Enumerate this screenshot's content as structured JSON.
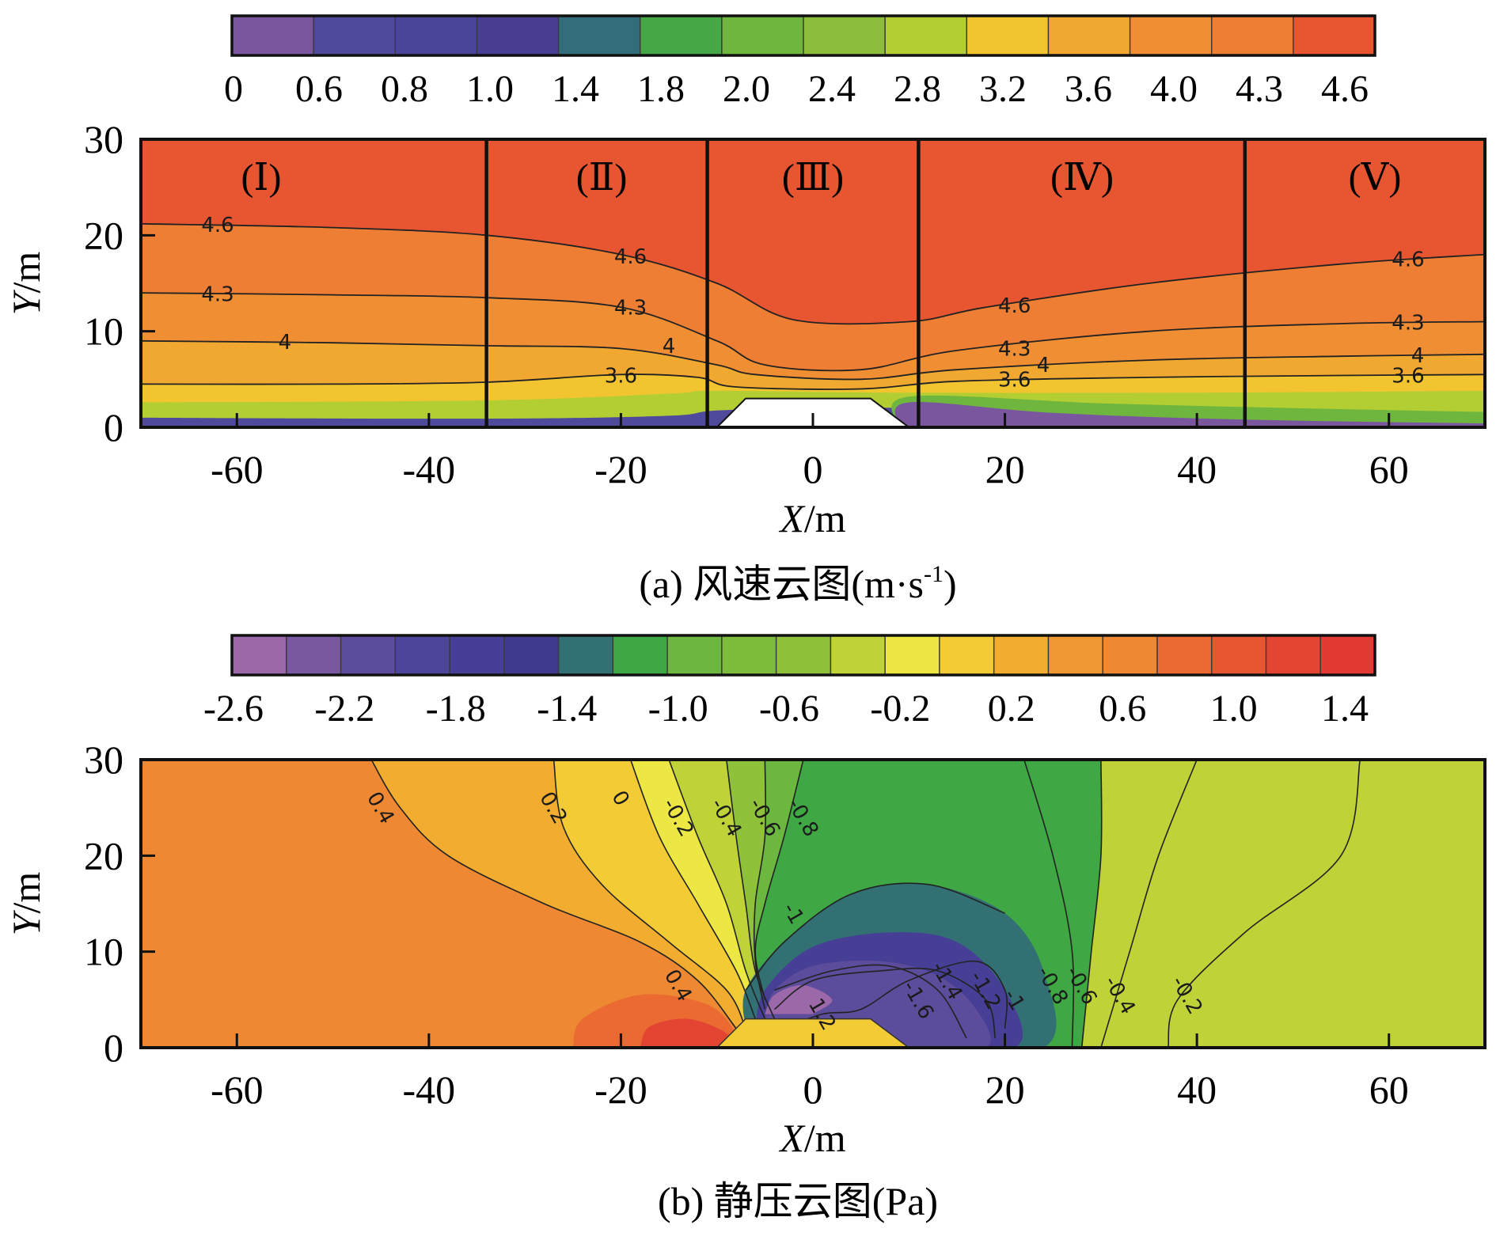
{
  "colors": {
    "velocity_bands": [
      "#7a569f",
      "#4f4a9c",
      "#4b459a",
      "#483f93",
      "#336d7a",
      "#45a745",
      "#6eb63e",
      "#8cbe3b",
      "#b3ce33",
      "#f2c530",
      "#f0a830",
      "#ef8e33",
      "#ee7e33",
      "#e85631"
    ],
    "pressure_bands": [
      "#9b68aa",
      "#7a58a0",
      "#5d4c9b",
      "#4c4599",
      "#463f95",
      "#403a8f",
      "#327074",
      "#3fa744",
      "#6cb73f",
      "#7cbb3c",
      "#8fc13b",
      "#bfd338",
      "#ece742",
      "#f3cb34",
      "#f2ad30",
      "#ef9733",
      "#ee8833",
      "#ea6a32",
      "#e55631",
      "#e44533",
      "#e33a33"
    ]
  },
  "panels": [
    {
      "caption": "(a) 风速云图(m·s",
      "caption_sup": "-1",
      "caption_tail": ")",
      "colorbar_ticks": [
        "0",
        "0.6",
        "0.8",
        "1.0",
        "1.4",
        "1.8",
        "2.0",
        "2.4",
        "2.8",
        "3.2",
        "3.6",
        "4.0",
        "4.3",
        "4.6"
      ],
      "region_labels": [
        "(Ⅰ)",
        "(Ⅱ)",
        "(Ⅲ)",
        "(Ⅳ)",
        "(Ⅴ)"
      ],
      "x_ticks": [
        "-60",
        "-40",
        "-20",
        "0",
        "20",
        "40",
        "60"
      ],
      "y_ticks": [
        "0",
        "10",
        "20",
        "30"
      ],
      "xlabel_var": "X",
      "xlabel_unit": "/m",
      "ylabel_var": "Y",
      "ylabel_unit": "/m"
    },
    {
      "caption": "(b) 静压云图(Pa)",
      "colorbar_ticks": [
        "-2.6",
        "-2.2",
        "-1.8",
        "-1.4",
        "-1.0",
        "-0.6",
        "-0.2",
        "0.2",
        "0.6",
        "1.0",
        "1.4"
      ],
      "x_ticks": [
        "-60",
        "-40",
        "-20",
        "0",
        "20",
        "40",
        "60"
      ],
      "y_ticks": [
        "0",
        "10",
        "20",
        "30"
      ],
      "xlabel_var": "X",
      "xlabel_unit": "/m",
      "ylabel_var": "Y",
      "ylabel_unit": "/m"
    }
  ],
  "chart_data": [
    {
      "type": "heatmap",
      "xlim": [
        -70,
        70
      ],
      "ylim": [
        0,
        30
      ],
      "region_dividers_x": [
        -34,
        -11,
        11,
        45
      ],
      "obstacle": [
        [
          -10,
          0
        ],
        [
          -7,
          3
        ],
        [
          6,
          3
        ],
        [
          10,
          0
        ]
      ],
      "contours": [
        {
          "label": "4.6",
          "points": [
            [
              -70,
              21.2
            ],
            [
              -50,
              20.8
            ],
            [
              -34,
              20
            ],
            [
              -20,
              18
            ],
            [
              -10,
              15
            ],
            [
              -2,
              11.2
            ],
            [
              10,
              11
            ],
            [
              18,
              12.5
            ],
            [
              35,
              15
            ],
            [
              55,
              17
            ],
            [
              70,
              18
            ]
          ]
        },
        {
          "label": "4.3",
          "points": [
            [
              -70,
              14
            ],
            [
              -50,
              13.8
            ],
            [
              -34,
              13.5
            ],
            [
              -20,
              12.5
            ],
            [
              -10,
              9
            ],
            [
              -5,
              6.5
            ],
            [
              5,
              6
            ],
            [
              15,
              8
            ],
            [
              35,
              10
            ],
            [
              55,
              10.8
            ],
            [
              70,
              11
            ]
          ]
        },
        {
          "label": "4",
          "points": [
            [
              -70,
              9
            ],
            [
              -50,
              8.8
            ],
            [
              -34,
              8.5
            ],
            [
              -20,
              8.2
            ],
            [
              -10,
              6.5
            ],
            [
              -6,
              5.5
            ],
            [
              5,
              5
            ],
            [
              15,
              6
            ],
            [
              35,
              7
            ],
            [
              55,
              7.4
            ],
            [
              70,
              7.6
            ]
          ]
        },
        {
          "label": "3.6",
          "points": [
            [
              -70,
              4.5
            ],
            [
              -50,
              4.5
            ],
            [
              -34,
              4.7
            ],
            [
              -20,
              5.5
            ],
            [
              -12,
              5.2
            ],
            [
              -8,
              4.2
            ],
            [
              5,
              4
            ],
            [
              15,
              4.8
            ],
            [
              35,
              5.2
            ],
            [
              55,
              5.4
            ],
            [
              70,
              5.5
            ]
          ]
        }
      ],
      "contour_labels": [
        {
          "text": "4.6",
          "x": -62,
          "y": 21.1
        },
        {
          "text": "4.3",
          "x": -62,
          "y": 13.9
        },
        {
          "text": "4",
          "x": -55,
          "y": 8.9
        },
        {
          "text": "4.6",
          "x": -19,
          "y": 17.8
        },
        {
          "text": "4.3",
          "x": -19,
          "y": 12.5
        },
        {
          "text": "4",
          "x": -15,
          "y": 8.5
        },
        {
          "text": "3.6",
          "x": -20,
          "y": 5.4
        },
        {
          "text": "4.6",
          "x": 21,
          "y": 12.7
        },
        {
          "text": "4.3",
          "x": 21,
          "y": 8.2
        },
        {
          "text": "4",
          "x": 24,
          "y": 6.5
        },
        {
          "text": "3.6",
          "x": 21,
          "y": 5
        },
        {
          "text": "4.6",
          "x": 62,
          "y": 17.5
        },
        {
          "text": "4.3",
          "x": 62,
          "y": 10.9
        },
        {
          "text": "4",
          "x": 63,
          "y": 7.5
        },
        {
          "text": "3.6",
          "x": 62,
          "y": 5.4
        }
      ]
    },
    {
      "type": "heatmap",
      "xlim": [
        -70,
        70
      ],
      "ylim": [
        0,
        30
      ],
      "contours": [
        {
          "label": "0.4",
          "points": [
            [
              -46,
              30
            ],
            [
              -43,
              25
            ],
            [
              -38,
              20
            ],
            [
              -28,
              15
            ],
            [
              -18,
              11
            ],
            [
              -12,
              7
            ],
            [
              -8,
              2
            ]
          ]
        },
        {
          "label": "0.2",
          "points": [
            [
              -27,
              30
            ],
            [
              -26,
              23
            ],
            [
              -22,
              17
            ],
            [
              -15,
              11
            ],
            [
              -9,
              6
            ],
            [
              -7,
              2
            ]
          ]
        },
        {
          "label": "0",
          "points": [
            [
              -19,
              30
            ],
            [
              -16,
              22
            ],
            [
              -12,
              15
            ],
            [
              -8,
              8
            ],
            [
              -6,
              3
            ]
          ]
        },
        {
          "label": "-0.2",
          "points": [
            [
              -15,
              30
            ],
            [
              -12,
              22
            ],
            [
              -9,
              15
            ],
            [
              -7,
              8
            ],
            [
              -5,
              3
            ]
          ]
        },
        {
          "label": "-0.4",
          "points": [
            [
              -9,
              30
            ],
            [
              -8,
              22
            ],
            [
              -7,
              15
            ],
            [
              -6,
              8
            ],
            [
              -4,
              3
            ]
          ]
        },
        {
          "label": "-0.6",
          "points": [
            [
              -5,
              30
            ],
            [
              -5,
              22
            ],
            [
              -6,
              15
            ],
            [
              -6,
              9
            ],
            [
              -5,
              4
            ]
          ]
        },
        {
          "label": "-0.8",
          "points": [
            [
              -1,
              30
            ],
            [
              -3,
              22
            ],
            [
              -5,
              15
            ],
            [
              -6,
              10
            ],
            [
              -5,
              5
            ]
          ]
        },
        {
          "label": "-1",
          "points": [
            [
              -7,
              6
            ],
            [
              -3,
              11
            ],
            [
              4,
              16
            ],
            [
              12,
              17
            ],
            [
              20,
              14
            ]
          ]
        },
        {
          "label": "-1.2",
          "points": [
            [
              -3,
              2
            ],
            [
              1,
              3.5
            ],
            [
              5,
              4
            ],
            [
              10,
              7
            ],
            [
              17,
              9
            ],
            [
              20,
              6
            ],
            [
              20,
              2
            ]
          ]
        },
        {
          "label": "-1.4",
          "points": [
            [
              -4,
              4
            ],
            [
              0,
              7
            ],
            [
              7,
              8
            ],
            [
              13,
              8
            ],
            [
              18,
              5
            ],
            [
              19,
              1
            ]
          ]
        },
        {
          "label": "-1.6",
          "points": [
            [
              -4,
              6
            ],
            [
              2,
              8
            ],
            [
              8,
              8.5
            ],
            [
              13,
              6
            ],
            [
              16,
              1
            ]
          ]
        },
        {
          "label": "-0.8",
          "points": [
            [
              22,
              30
            ],
            [
              25,
              20
            ],
            [
              27,
              10
            ],
            [
              27,
              0
            ]
          ]
        },
        {
          "label": "-0.6",
          "points": [
            [
              30,
              30
            ],
            [
              30,
              20
            ],
            [
              29,
              10
            ],
            [
              28,
              0
            ]
          ]
        },
        {
          "label": "-0.4",
          "points": [
            [
              40,
              30
            ],
            [
              36,
              20
            ],
            [
              33,
              10
            ],
            [
              30,
              0
            ]
          ]
        },
        {
          "label": "-0.2",
          "points": [
            [
              57,
              30
            ],
            [
              55,
              20
            ],
            [
              45,
              12
            ],
            [
              38,
              5
            ],
            [
              37,
              0
            ]
          ]
        }
      ],
      "contour_labels": [
        {
          "text": "0.4",
          "x": -45,
          "y": 25
        },
        {
          "text": "0.2",
          "x": -27,
          "y": 25
        },
        {
          "text": "0",
          "x": -20,
          "y": 26
        },
        {
          "text": "-0.2",
          "x": -14,
          "y": 24
        },
        {
          "text": "-0.4",
          "x": -9,
          "y": 24
        },
        {
          "text": "-0.6",
          "x": -5,
          "y": 24
        },
        {
          "text": "-0.8",
          "x": -1,
          "y": 24
        },
        {
          "text": "-1",
          "x": -2,
          "y": 14
        },
        {
          "text": "0.4",
          "x": -14,
          "y": 6.5
        },
        {
          "text": "-1.4",
          "x": 14,
          "y": 7
        },
        {
          "text": "-1.6",
          "x": 11,
          "y": 5
        },
        {
          "text": "-1.2",
          "x": 18,
          "y": 6
        },
        {
          "text": "-1",
          "x": 21,
          "y": 5
        },
        {
          "text": "-0.8",
          "x": 25,
          "y": 6.5
        },
        {
          "text": "-0.6",
          "x": 28,
          "y": 6.5
        },
        {
          "text": "-0.4",
          "x": 32,
          "y": 5.5
        },
        {
          "text": "-0.2",
          "x": 39,
          "y": 5.5
        },
        {
          "text": "1.2",
          "x": 1,
          "y": 3.5
        }
      ]
    }
  ]
}
